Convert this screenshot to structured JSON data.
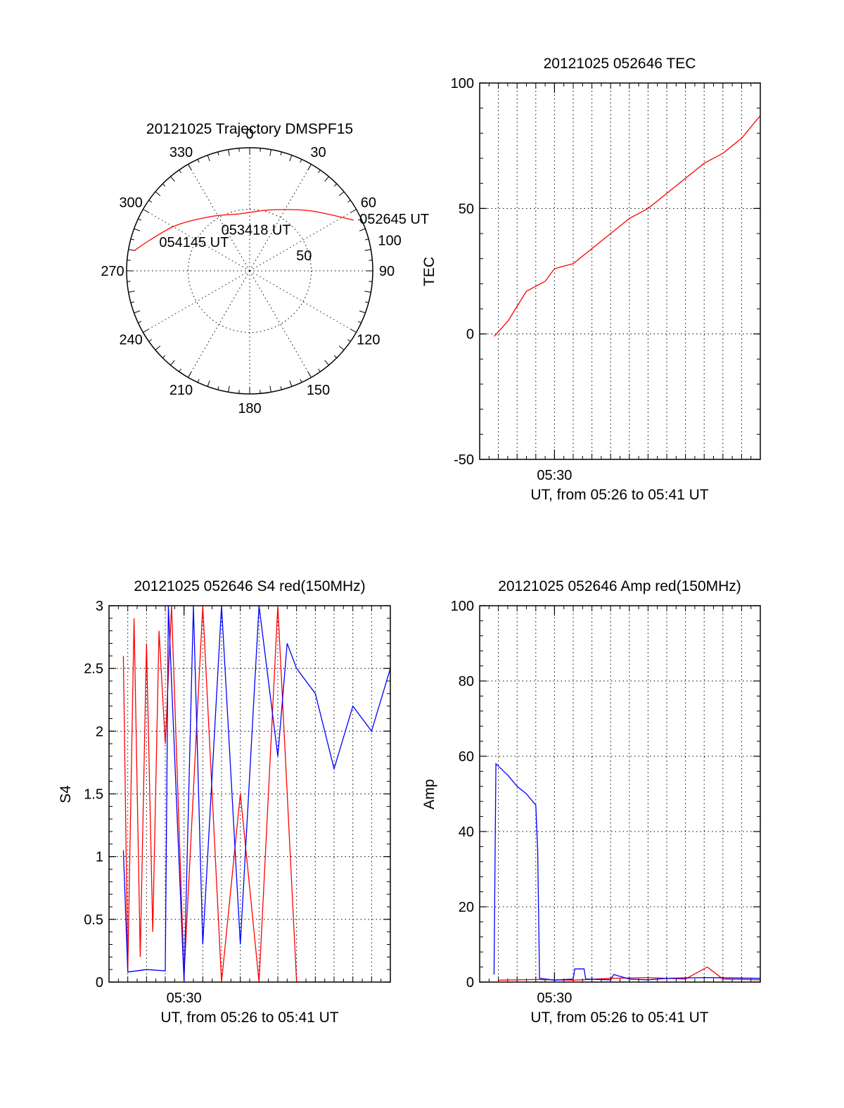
{
  "colors": {
    "red": "#ff0000",
    "blue": "#0000ff",
    "ink": "#000000",
    "background": "#ffffff"
  },
  "chart_data": [
    {
      "type": "polar-trajectory",
      "title": "20121025 Trajectory DMSPF15",
      "angle_ticks": [
        "0",
        "30",
        "60",
        "90",
        "120",
        "150",
        "180",
        "210",
        "240",
        "270",
        "300",
        "330"
      ],
      "radial_ticks": [
        "50",
        "100"
      ],
      "radial_max": 100,
      "grid": true,
      "series": [
        {
          "color": "#ff0000",
          "points": [
            [
              64,
              94
            ],
            [
              45,
              69
            ],
            [
              18,
              52
            ],
            [
              -10,
              47
            ],
            [
              -35,
              54
            ],
            [
              -58,
              70
            ],
            [
              -73,
              85
            ],
            [
              -80,
              95
            ]
          ]
        }
      ],
      "annotations": [
        {
          "text": "052645 UT",
          "azimuth": 64,
          "radius": 98
        },
        {
          "text": "053418 UT",
          "azimuth": 10,
          "radius": 35
        },
        {
          "text": "054145 UT",
          "azimuth": -70,
          "radius": 77
        }
      ]
    },
    {
      "type": "line",
      "title": "20121025 052646 TEC",
      "xlabel": "UT, from 05:26 to 05:41 UT",
      "ylabel": "TEC",
      "xlim": [
        "05:26:00",
        "05:41:00"
      ],
      "ylim": [
        -50,
        100
      ],
      "xticks": [
        "05:30"
      ],
      "yticks": [
        -50,
        0,
        50,
        100
      ],
      "grid": true,
      "series": [
        {
          "color": "#ff0000",
          "x": [
            "05:26:46",
            "05:27:30",
            "05:28:30",
            "05:29:30",
            "05:30:00",
            "05:31:00",
            "05:32:00",
            "05:33:00",
            "05:34:00",
            "05:35:00",
            "05:36:00",
            "05:37:00",
            "05:38:00",
            "05:39:00",
            "05:40:00",
            "05:41:00"
          ],
          "y": [
            -1,
            5,
            17,
            21,
            26,
            28,
            34,
            40,
            46,
            50,
            56,
            62,
            68,
            72,
            78,
            87
          ]
        }
      ]
    },
    {
      "type": "line",
      "title": "20121025 052646 S4 red(150MHz)",
      "xlabel": "UT, from 05:26 to 05:41 UT",
      "ylabel": "S4",
      "xlim": [
        "05:26:00",
        "05:41:00"
      ],
      "ylim": [
        0,
        3
      ],
      "xticks": [
        "05:30"
      ],
      "yticks": [
        0,
        0.5,
        1,
        1.5,
        2,
        2.5,
        3
      ],
      "grid": true,
      "series": [
        {
          "color": "#ff0000",
          "x": [
            "05:26:46",
            "05:27:00",
            "05:27:20",
            "05:27:40",
            "05:28:00",
            "05:28:20",
            "05:28:40",
            "05:29:00",
            "05:29:20",
            "05:30:00",
            "05:31:00",
            "05:32:00",
            "05:33:00",
            "05:34:00",
            "05:35:00",
            "05:36:00",
            "05:37:00",
            "05:38:00",
            "05:39:00"
          ],
          "y": [
            2.6,
            0.1,
            2.9,
            0.2,
            2.7,
            0.4,
            2.8,
            1.9,
            3.0,
            0.05,
            3.0,
            0.0,
            1.5,
            0.0,
            3.0,
            0.0,
            0.0,
            0.0,
            0.0
          ]
        },
        {
          "color": "#0000ff",
          "x": [
            "05:26:46",
            "05:27:00",
            "05:28:00",
            "05:29:00",
            "05:29:10",
            "05:30:00",
            "05:30:30",
            "05:31:00",
            "05:32:00",
            "05:33:00",
            "05:34:00",
            "05:35:00",
            "05:35:30",
            "05:36:00",
            "05:37:00",
            "05:38:00",
            "05:39:00",
            "05:40:00",
            "05:41:00"
          ],
          "y": [
            1.05,
            0.08,
            0.1,
            0.09,
            3.0,
            0.0,
            3.0,
            0.3,
            3.0,
            0.3,
            3.0,
            1.8,
            2.7,
            2.5,
            2.3,
            1.7,
            2.2,
            2.0,
            2.5
          ]
        }
      ]
    },
    {
      "type": "line",
      "title": "20121025 052646 Amp red(150MHz)",
      "xlabel": "UT, from 05:26 to 05:41 UT",
      "ylabel": "Amp",
      "xlim": [
        "05:26:00",
        "05:41:00"
      ],
      "ylim": [
        0,
        100
      ],
      "xticks": [
        "05:30"
      ],
      "yticks": [
        0,
        20,
        40,
        60,
        80,
        100
      ],
      "grid": true,
      "series": [
        {
          "color": "#ff0000",
          "x": [
            "05:27:00",
            "05:29:00",
            "05:31:00",
            "05:33:00",
            "05:35:00",
            "05:37:00",
            "05:38:10",
            "05:39:00",
            "05:41:00"
          ],
          "y": [
            0.5,
            0.7,
            0.5,
            1.0,
            1.2,
            0.8,
            4.0,
            0.8,
            0.6
          ]
        },
        {
          "color": "#0000ff",
          "x": [
            "05:26:46",
            "05:26:52",
            "05:27:30",
            "05:28:00",
            "05:28:30",
            "05:29:00",
            "05:29:06",
            "05:29:12",
            "05:30:00",
            "05:31:00",
            "05:31:05",
            "05:31:35",
            "05:31:40",
            "05:33:00",
            "05:33:10",
            "05:34:00",
            "05:35:00",
            "05:36:00",
            "05:38:00",
            "05:41:00"
          ],
          "y": [
            2.0,
            58,
            55,
            52,
            50,
            47,
            35,
            1.0,
            0.5,
            0.8,
            3.5,
            3.5,
            0.8,
            0.6,
            2.0,
            0.8,
            0.6,
            1.0,
            1.2,
            1.0
          ]
        }
      ]
    }
  ]
}
